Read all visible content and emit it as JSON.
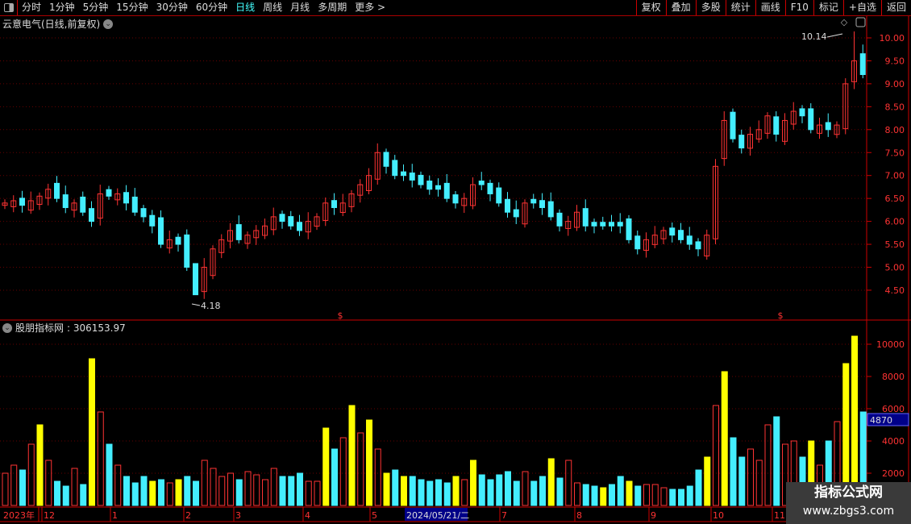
{
  "toolbar": {
    "periods": [
      "分时",
      "1分钟",
      "5分钟",
      "15分钟",
      "30分钟",
      "60分钟",
      "日线",
      "周线",
      "月线",
      "多周期",
      "更多 >"
    ],
    "active": "日线",
    "right_buttons": [
      "复权",
      "叠加",
      "多股",
      "统计",
      "画线",
      "F10",
      "标记",
      "+自选",
      "返回"
    ]
  },
  "stock_title": "云意电气(日线,前复权)",
  "indicator_title": "股朋指标网",
  "indicator_value": ": 306153.97",
  "colors": {
    "up": "#ff3333",
    "down": "#44eeff",
    "yellow": "#ffff00",
    "axis": "#cc0000",
    "cursor_bg": "#000088"
  },
  "price_axis": {
    "ticks": [
      "10.00",
      "9.50",
      "9.00",
      "8.50",
      "8.00",
      "7.50",
      "7.00",
      "6.50",
      "6.00",
      "5.50",
      "5.00",
      "4.50"
    ]
  },
  "volume_axis": {
    "ticks": [
      "10000",
      "8000",
      "6000",
      "4000",
      "2000"
    ],
    "cursor_value": "4870"
  },
  "annotations": {
    "high": "10.14",
    "low": "4.18"
  },
  "date_axis": {
    "labels": [
      "2023年",
      "12",
      "1",
      "2",
      "3",
      "4",
      "5",
      "7",
      "8",
      "9",
      "10",
      "11"
    ],
    "cursor_date": "2024/05/21/二"
  },
  "chart_data": {
    "type": "candlestick",
    "closes": [
      6.4,
      6.45,
      6.35,
      6.45,
      6.55,
      6.7,
      6.5,
      6.3,
      6.4,
      6.2,
      6.0,
      6.6,
      6.55,
      6.6,
      6.4,
      6.2,
      6.1,
      5.9,
      5.5,
      5.6,
      5.5,
      5.0,
      4.4,
      5.0,
      5.4,
      5.6,
      5.8,
      5.6,
      5.7,
      5.8,
      5.9,
      6.1,
      6.0,
      5.9,
      5.8,
      6.0,
      6.1,
      6.4,
      6.3,
      6.4,
      6.6,
      6.8,
      7.0,
      7.5,
      7.2,
      7.0,
      7.0,
      6.9,
      6.8,
      6.7,
      6.7,
      6.5,
      6.4,
      6.5,
      6.8,
      6.8,
      6.6,
      6.4,
      6.2,
      6.1,
      6.4,
      6.4,
      6.3,
      6.1,
      5.9,
      6.0,
      6.2,
      5.9,
      5.9,
      5.9,
      5.9,
      5.9,
      5.6,
      5.4,
      5.6,
      5.7,
      5.8,
      5.7,
      5.6,
      5.5,
      5.4,
      5.7,
      7.2,
      8.2,
      7.8,
      7.6,
      7.9,
      8.0,
      8.3,
      7.9,
      8.2,
      8.4,
      8.3,
      8.0,
      8.1,
      8.0,
      8.1,
      9.0,
      9.5,
      9.2
    ],
    "volumes": [
      2000,
      2500,
      2200,
      3800,
      5000,
      2800,
      1500,
      1200,
      2300,
      1300,
      9100,
      5800,
      3800,
      2500,
      1800,
      1400,
      1800,
      1500,
      1600,
      1400,
      1600,
      1800,
      1500,
      2800,
      2300,
      1800,
      2000,
      1600,
      2100,
      1900,
      1600,
      2300,
      1800,
      1800,
      2000,
      1500,
      1500,
      4800,
      3500,
      4200,
      6200,
      4500,
      5300,
      3500,
      2000,
      2200,
      1800,
      1800,
      1600,
      1500,
      1600,
      1400,
      1800,
      1600,
      2800,
      1900,
      1600,
      1900,
      2100,
      1500,
      2100,
      1500,
      1800,
      2900,
      1700,
      2800,
      1400,
      1300,
      1200,
      1100,
      1300,
      1800,
      1500,
      1200,
      1300,
      1300,
      1100,
      1000,
      1000,
      1200,
      2200,
      3000,
      6200,
      8300,
      4200,
      3000,
      3500,
      2800,
      5000,
      5500,
      3800,
      4000,
      3000,
      4000,
      2500,
      4000,
      5200,
      8800,
      10500,
      5800
    ],
    "yellow_idx": [
      4,
      10,
      17,
      20,
      37,
      40,
      42,
      44,
      46,
      52,
      54,
      63,
      69,
      72,
      81,
      83,
      93,
      97,
      98
    ],
    "price_range": [
      4.0,
      10.4
    ],
    "volume_range": [
      0,
      11000
    ],
    "high": 10.14,
    "low": 4.18
  }
}
